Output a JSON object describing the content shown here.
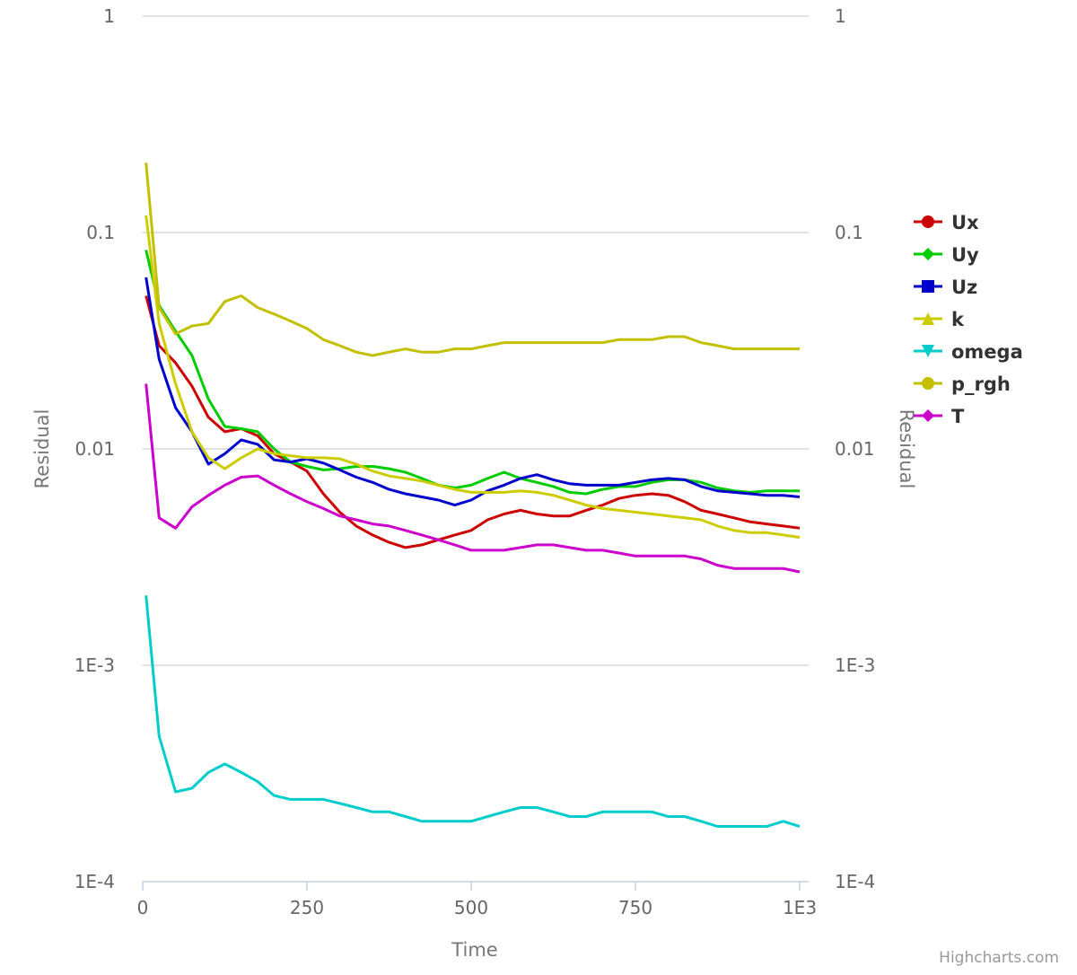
{
  "chart_data": {
    "type": "line",
    "title": "",
    "xlabel": "Time",
    "ylabel": "Residual",
    "y2label": "Residual",
    "yscale": "log",
    "ylim": [
      0.0001,
      1
    ],
    "xlim": [
      0,
      1000
    ],
    "x_ticks": [
      0,
      250,
      500,
      750,
      1000
    ],
    "x_tick_labels": [
      "0",
      "250",
      "500",
      "750",
      "1E3"
    ],
    "y_ticks": [
      1,
      0.1,
      0.01,
      0.001,
      0.0001
    ],
    "y_tick_labels": [
      "1",
      "0.1",
      "0.01",
      "1E-3",
      "1E-4"
    ],
    "grid": true,
    "legend_position": "right",
    "credits": "Highcharts.com",
    "x": [
      5,
      25,
      50,
      75,
      100,
      125,
      150,
      175,
      200,
      225,
      250,
      275,
      300,
      325,
      350,
      375,
      400,
      425,
      450,
      475,
      500,
      525,
      550,
      575,
      600,
      625,
      650,
      675,
      700,
      725,
      750,
      775,
      800,
      825,
      850,
      875,
      900,
      925,
      950,
      975,
      1000
    ],
    "series": [
      {
        "name": "Ux",
        "color": "#cc0000",
        "marker": "circle",
        "values": [
          0.051,
          0.03,
          0.025,
          0.0195,
          0.014,
          0.012,
          0.0124,
          0.0115,
          0.0095,
          0.0087,
          0.0079,
          0.0062,
          0.0051,
          0.0044,
          0.004,
          0.0037,
          0.0035,
          0.0036,
          0.0038,
          0.004,
          0.0042,
          0.0047,
          0.005,
          0.0052,
          0.005,
          0.0049,
          0.0049,
          0.0052,
          0.0055,
          0.0059,
          0.0061,
          0.0062,
          0.0061,
          0.0057,
          0.0052,
          0.005,
          0.0048,
          0.0046,
          0.0045,
          0.0044,
          0.0043
        ]
      },
      {
        "name": "Uy",
        "color": "#00cc00",
        "marker": "diamond",
        "values": [
          0.083,
          0.046,
          0.035,
          0.027,
          0.017,
          0.0127,
          0.0124,
          0.012,
          0.01,
          0.0087,
          0.0083,
          0.008,
          0.0081,
          0.0083,
          0.0083,
          0.0081,
          0.0078,
          0.0073,
          0.0068,
          0.0066,
          0.0068,
          0.0073,
          0.0078,
          0.0073,
          0.007,
          0.0067,
          0.0063,
          0.0062,
          0.0065,
          0.0067,
          0.0067,
          0.007,
          0.0072,
          0.0072,
          0.007,
          0.0066,
          0.0064,
          0.0063,
          0.0064,
          0.0064,
          0.0064
        ]
      },
      {
        "name": "Uz",
        "color": "#0000cc",
        "marker": "square",
        "values": [
          0.062,
          0.026,
          0.0155,
          0.012,
          0.0085,
          0.0095,
          0.011,
          0.0105,
          0.0089,
          0.0087,
          0.009,
          0.0086,
          0.008,
          0.0074,
          0.007,
          0.0065,
          0.0062,
          0.006,
          0.0058,
          0.0055,
          0.0058,
          0.0064,
          0.0068,
          0.0073,
          0.0076,
          0.0072,
          0.0069,
          0.0068,
          0.0068,
          0.0068,
          0.007,
          0.0072,
          0.0073,
          0.0072,
          0.0067,
          0.0064,
          0.0063,
          0.0062,
          0.0061,
          0.0061,
          0.006
        ]
      },
      {
        "name": "k",
        "color": "#cccc00",
        "marker": "triangle",
        "values": [
          0.12,
          0.038,
          0.02,
          0.012,
          0.0091,
          0.0081,
          0.0091,
          0.01,
          0.0095,
          0.0093,
          0.0091,
          0.0091,
          0.009,
          0.0085,
          0.0079,
          0.0075,
          0.0073,
          0.0071,
          0.0068,
          0.0065,
          0.0063,
          0.0063,
          0.0063,
          0.0064,
          0.0063,
          0.0061,
          0.0058,
          0.0055,
          0.0053,
          0.0052,
          0.0051,
          0.005,
          0.0049,
          0.0048,
          0.0047,
          0.0044,
          0.0042,
          0.0041,
          0.0041,
          0.004,
          0.0039
        ]
      },
      {
        "name": "omega",
        "color": "#00cccc",
        "marker": "triangle-down",
        "values": [
          0.0021,
          0.00047,
          0.00026,
          0.00027,
          0.00032,
          0.00035,
          0.00032,
          0.00029,
          0.00025,
          0.00024,
          0.00024,
          0.00024,
          0.00023,
          0.00022,
          0.00021,
          0.00021,
          0.0002,
          0.00019,
          0.00019,
          0.00019,
          0.00019,
          0.0002,
          0.00021,
          0.00022,
          0.00022,
          0.00021,
          0.0002,
          0.0002,
          0.00021,
          0.00021,
          0.00021,
          0.00021,
          0.0002,
          0.0002,
          0.00019,
          0.00018,
          0.00018,
          0.00018,
          0.00018,
          0.00019,
          0.00018
        ]
      },
      {
        "name": "p_rgh",
        "color": "#c2c000",
        "marker": "circle",
        "values": [
          0.21,
          0.045,
          0.034,
          0.037,
          0.038,
          0.048,
          0.051,
          0.045,
          0.042,
          0.039,
          0.036,
          0.032,
          0.03,
          0.028,
          0.027,
          0.028,
          0.029,
          0.028,
          0.028,
          0.029,
          0.029,
          0.03,
          0.031,
          0.031,
          0.031,
          0.031,
          0.031,
          0.031,
          0.031,
          0.032,
          0.032,
          0.032,
          0.033,
          0.033,
          0.031,
          0.03,
          0.029,
          0.029,
          0.029,
          0.029,
          0.029
        ]
      },
      {
        "name": "T",
        "color": "#cc00cc",
        "marker": "diamond",
        "values": [
          0.02,
          0.0048,
          0.0043,
          0.0054,
          0.0061,
          0.0068,
          0.0074,
          0.0075,
          0.0068,
          0.0062,
          0.0057,
          0.0053,
          0.0049,
          0.0047,
          0.0045,
          0.0044,
          0.0042,
          0.004,
          0.0038,
          0.0036,
          0.0034,
          0.0034,
          0.0034,
          0.0035,
          0.0036,
          0.0036,
          0.0035,
          0.0034,
          0.0034,
          0.0033,
          0.0032,
          0.0032,
          0.0032,
          0.0032,
          0.0031,
          0.0029,
          0.0028,
          0.0028,
          0.0028,
          0.0028,
          0.0027
        ]
      }
    ]
  }
}
